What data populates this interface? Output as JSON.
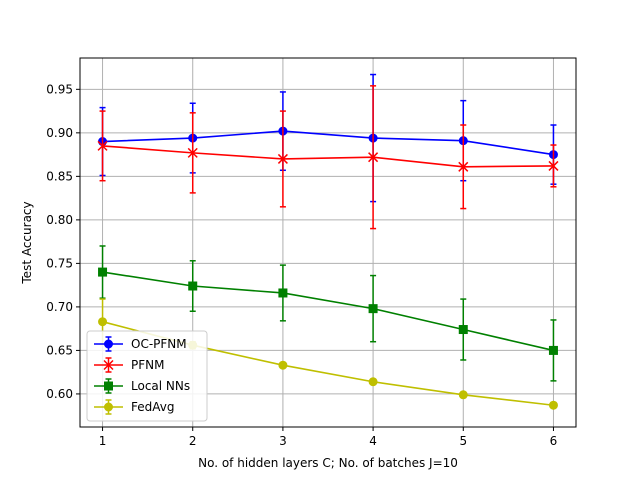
{
  "chart_data": {
    "type": "line",
    "title": "",
    "xlabel": "No. of hidden layers C; No. of batches J=10",
    "ylabel": "Test Accuracy",
    "x": [
      1,
      2,
      3,
      4,
      5,
      6
    ],
    "xlim": [
      0.75,
      6.25
    ],
    "ylim": [
      0.562,
      0.986
    ],
    "xticks": [
      "1",
      "2",
      "3",
      "4",
      "5",
      "6"
    ],
    "yticks": [
      "0.60",
      "0.65",
      "0.70",
      "0.75",
      "0.80",
      "0.85",
      "0.90",
      "0.95"
    ],
    "grid": true,
    "legend_position": "lower-left",
    "series": [
      {
        "name": "OC-PFNM",
        "color": "#0000ff",
        "marker": "circle",
        "values": [
          0.89,
          0.894,
          0.902,
          0.894,
          0.891,
          0.875
        ],
        "error": [
          0.039,
          0.04,
          0.045,
          0.073,
          0.046,
          0.034
        ]
      },
      {
        "name": "PFNM",
        "color": "#ff0000",
        "marker": "x",
        "values": [
          0.885,
          0.877,
          0.87,
          0.872,
          0.861,
          0.862
        ],
        "error": [
          0.04,
          0.046,
          0.055,
          0.082,
          0.048,
          0.024
        ]
      },
      {
        "name": "Local NNs",
        "color": "#008000",
        "marker": "square",
        "values": [
          0.74,
          0.724,
          0.716,
          0.698,
          0.674,
          0.65
        ],
        "error": [
          0.03,
          0.029,
          0.032,
          0.038,
          0.035,
          0.035
        ]
      },
      {
        "name": "FedAvg",
        "color": "#bfbf00",
        "marker": "circle",
        "values": [
          0.683,
          0.656,
          0.633,
          0.614,
          0.599,
          0.587
        ],
        "error": [
          0.026,
          0.004,
          0.003,
          0.003,
          0.003,
          0.003
        ]
      }
    ]
  }
}
